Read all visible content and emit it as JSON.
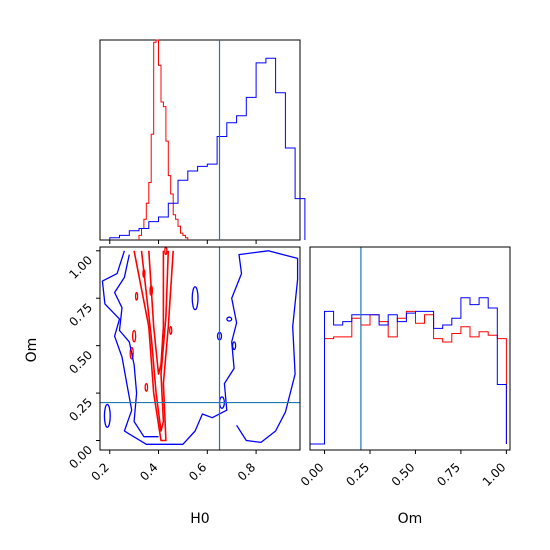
{
  "colors": {
    "red": "#ff0000",
    "blue": "#0000ff",
    "truth": "#1f77b4"
  },
  "chart_data": [
    {
      "type": "histogram",
      "panel": "H0 marginal",
      "xlim": [
        0.16,
        0.98
      ],
      "truth": 0.65,
      "series": [
        {
          "color": "red",
          "bins": [
            0.32,
            0.33,
            0.34,
            0.35,
            0.36,
            0.37,
            0.38,
            0.39,
            0.4,
            0.41,
            0.42,
            0.43,
            0.44,
            0.45,
            0.46,
            0.47,
            0.48,
            0.49,
            0.5,
            0.51
          ],
          "heights": [
            0.02,
            0.05,
            0.09,
            0.16,
            0.25,
            0.46,
            0.86,
            0.94,
            0.76,
            0.6,
            0.58,
            0.43,
            0.28,
            0.2,
            0.11,
            0.09,
            0.06,
            0.03,
            0.02,
            0.01
          ]
        },
        {
          "color": "blue",
          "bins": [
            0.2,
            0.24,
            0.28,
            0.32,
            0.36,
            0.4,
            0.44,
            0.48,
            0.52,
            0.56,
            0.6,
            0.64,
            0.68,
            0.72,
            0.76,
            0.8,
            0.84,
            0.88,
            0.92,
            0.96
          ],
          "heights": [
            0.01,
            0.02,
            0.04,
            0.05,
            0.08,
            0.1,
            0.16,
            0.26,
            0.3,
            0.32,
            0.33,
            0.45,
            0.51,
            0.54,
            0.62,
            0.77,
            0.79,
            0.64,
            0.4,
            0.18
          ]
        }
      ]
    },
    {
      "type": "contour",
      "panel": "H0 vs Om",
      "xlabel": "H0",
      "ylabel": "Om",
      "xlim": [
        0.16,
        0.98
      ],
      "ylim": [
        -0.05,
        1.02
      ],
      "xticks": [
        0.2,
        0.4,
        0.6,
        0.8
      ],
      "xtick_labels": [
        "0.2",
        "0.4",
        "0.6",
        "0.8"
      ],
      "yticks": [
        0.0,
        0.25,
        0.5,
        0.75,
        1.0
      ],
      "ytick_labels": [
        "0.00",
        "0.25",
        "0.50",
        "0.75",
        "1.00"
      ],
      "truth": {
        "x": 0.65,
        "y": 0.2
      },
      "series": [
        {
          "color": "red",
          "contours": [
            [
              [
                0.3,
                1.0
              ],
              [
                0.36,
                0.6
              ],
              [
                0.38,
                0.25
              ],
              [
                0.41,
                0.0
              ],
              [
                0.43,
                0.0
              ],
              [
                0.42,
                0.3
              ],
              [
                0.44,
                0.6
              ],
              [
                0.46,
                1.0
              ]
            ],
            [
              [
                0.33,
                1.0
              ],
              [
                0.37,
                0.55
              ],
              [
                0.39,
                0.25
              ],
              [
                0.41,
                0.05
              ],
              [
                0.42,
                0.1
              ],
              [
                0.41,
                0.35
              ],
              [
                0.43,
                0.65
              ],
              [
                0.44,
                1.0
              ]
            ],
            [
              [
                0.36,
                1.0
              ],
              [
                0.38,
                0.6
              ],
              [
                0.4,
                0.35
              ],
              [
                0.41,
                0.4
              ],
              [
                0.42,
                0.6
              ],
              [
                0.42,
                1.0
              ]
            ]
          ],
          "islands": [
            {
              "x": 0.29,
              "y": 0.46,
              "rx": 0.006,
              "ry": 0.03
            },
            {
              "x": 0.3,
              "y": 0.55,
              "rx": 0.006,
              "ry": 0.03
            },
            {
              "x": 0.35,
              "y": 0.28,
              "rx": 0.005,
              "ry": 0.02
            },
            {
              "x": 0.37,
              "y": 0.79,
              "rx": 0.005,
              "ry": 0.025
            },
            {
              "x": 0.31,
              "y": 0.76,
              "rx": 0.004,
              "ry": 0.02
            },
            {
              "x": 0.45,
              "y": 0.58,
              "rx": 0.004,
              "ry": 0.02
            },
            {
              "x": 0.34,
              "y": 0.88,
              "rx": 0.004,
              "ry": 0.02
            },
            {
              "x": 0.43,
              "y": 1.0,
              "rx": 0.004,
              "ry": 0.02
            }
          ]
        },
        {
          "color": "blue",
          "contours": [
            [
              [
                0.26,
                1.0
              ],
              [
                0.23,
                0.88
              ],
              [
                0.17,
                0.84
              ],
              [
                0.18,
                0.72
              ],
              [
                0.24,
                0.64
              ],
              [
                0.22,
                0.55
              ],
              [
                0.25,
                0.44
              ],
              [
                0.27,
                0.3
              ],
              [
                0.29,
                0.16
              ],
              [
                0.26,
                0.05
              ],
              [
                0.35,
                -0.02
              ],
              [
                0.5,
                -0.02
              ],
              [
                0.55,
                0.05
              ],
              [
                0.58,
                0.14
              ],
              [
                0.62,
                0.12
              ],
              [
                0.68,
                0.16
              ],
              [
                0.67,
                0.3
              ],
              [
                0.71,
                0.38
              ],
              [
                0.7,
                0.52
              ],
              [
                0.72,
                0.62
              ],
              [
                0.7,
                0.75
              ],
              [
                0.74,
                0.88
              ],
              [
                0.73,
                0.98
              ],
              [
                0.85,
                1.0
              ],
              [
                0.97,
                0.96
              ],
              [
                0.97,
                0.85
              ],
              [
                0.95,
                0.6
              ],
              [
                0.96,
                0.35
              ],
              [
                0.92,
                0.15
              ],
              [
                0.88,
                0.05
              ],
              [
                0.82,
                -0.01
              ],
              [
                0.76,
                0.0
              ],
              [
                0.72,
                0.08
              ]
            ],
            [
              [
                0.28,
                0.98
              ],
              [
                0.26,
                0.86
              ],
              [
                0.22,
                0.78
              ],
              [
                0.25,
                0.7
              ],
              [
                0.24,
                0.58
              ],
              [
                0.28,
                0.52
              ],
              [
                0.3,
                0.4
              ],
              [
                0.31,
                0.25
              ],
              [
                0.3,
                0.1
              ],
              [
                0.34,
                0.02
              ],
              [
                0.4,
                0.02
              ]
            ]
          ],
          "islands": [
            {
              "x": 0.55,
              "y": 0.75,
              "rx": 0.012,
              "ry": 0.06
            },
            {
              "x": 0.19,
              "y": 0.13,
              "rx": 0.012,
              "ry": 0.06
            },
            {
              "x": 0.65,
              "y": 0.55,
              "rx": 0.008,
              "ry": 0.02
            },
            {
              "x": 0.66,
              "y": 0.2,
              "rx": 0.01,
              "ry": 0.03
            },
            {
              "x": 0.71,
              "y": 0.5,
              "rx": 0.006,
              "ry": 0.02
            },
            {
              "x": 0.69,
              "y": 0.64,
              "rx": 0.01,
              "ry": 0.01
            }
          ]
        }
      ]
    },
    {
      "type": "histogram",
      "panel": "Om marginal",
      "xlabel": "Om",
      "xlim": [
        -0.08,
        1.02
      ],
      "xticks": [
        0.0,
        0.25,
        0.5,
        0.75,
        1.0
      ],
      "xtick_labels": [
        "0.00",
        "0.25",
        "0.50",
        "0.75",
        "1.00"
      ],
      "truth": 0.2,
      "series": [
        {
          "color": "red",
          "bins": [
            0.0,
            0.05,
            0.1,
            0.15,
            0.2,
            0.25,
            0.3,
            0.35,
            0.4,
            0.45,
            0.5,
            0.55,
            0.6,
            0.65,
            0.7,
            0.75,
            0.8,
            0.85,
            0.9,
            0.95
          ],
          "heights": [
            0.62,
            0.63,
            0.63,
            0.74,
            0.7,
            0.76,
            0.72,
            0.63,
            0.74,
            0.78,
            0.71,
            0.76,
            0.62,
            0.6,
            0.65,
            0.69,
            0.63,
            0.66,
            0.64,
            0.62
          ]
        },
        {
          "color": "blue",
          "bins": [
            0.0,
            0.05,
            0.1,
            0.15,
            0.2,
            0.25,
            0.3,
            0.35,
            0.4,
            0.45,
            0.5,
            0.55,
            0.6,
            0.65,
            0.7,
            0.75,
            0.8,
            0.85,
            0.9,
            0.95
          ],
          "heights": [
            0.78,
            0.7,
            0.72,
            0.76,
            0.76,
            0.76,
            0.7,
            0.76,
            0.72,
            0.77,
            0.78,
            0.78,
            0.68,
            0.7,
            0.74,
            0.86,
            0.82,
            0.86,
            0.8,
            0.35
          ]
        }
      ]
    }
  ]
}
